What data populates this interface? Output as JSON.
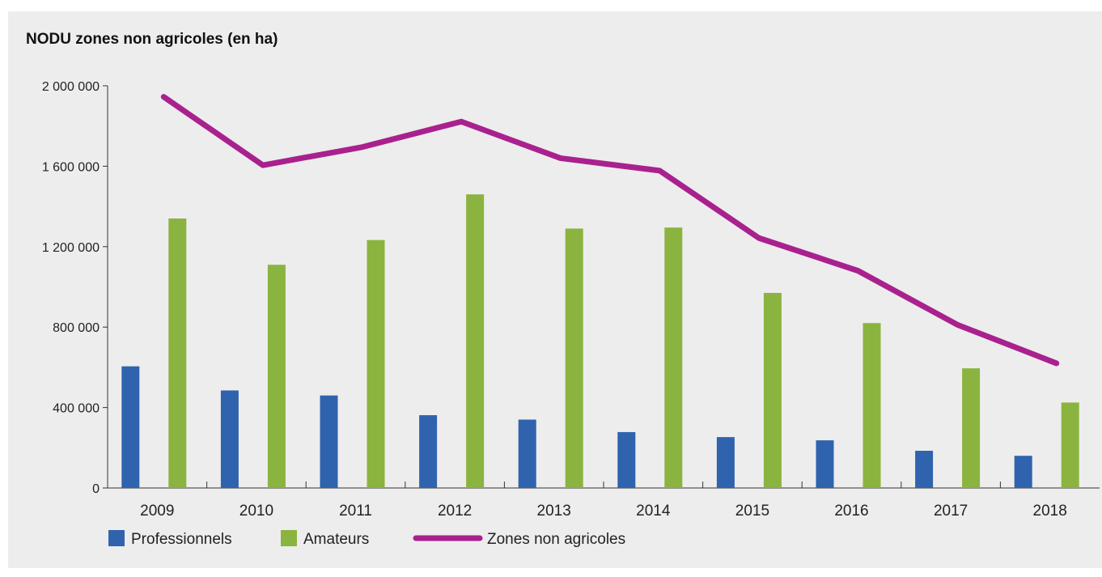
{
  "title": "NODU zones non agricoles (en ha)",
  "colors": {
    "professionnels": "#2f63ae",
    "amateurs": "#8ab43f",
    "zones": "#a9218e",
    "background": "#ededed"
  },
  "chart_data": {
    "type": "bar",
    "title": "NODU zones non agricoles (en ha)",
    "xlabel": "",
    "ylabel": "",
    "ylim": [
      0,
      2000000
    ],
    "yticks": [
      0,
      400000,
      800000,
      1200000,
      1600000,
      2000000
    ],
    "ytick_labels": [
      "0",
      "400 000",
      "800 000",
      "1 200 000",
      "1 600 000",
      "2 000 000"
    ],
    "categories": [
      "2009",
      "2010",
      "2011",
      "2012",
      "2013",
      "2014",
      "2015",
      "2016",
      "2017",
      "2018"
    ],
    "series": [
      {
        "name": "Professionnels",
        "type": "bar",
        "values": [
          605000,
          485000,
          460000,
          362000,
          340000,
          278000,
          253000,
          237000,
          185000,
          160000
        ]
      },
      {
        "name": "Amateurs",
        "type": "bar",
        "values": [
          1340000,
          1110000,
          1233000,
          1460000,
          1290000,
          1295000,
          970000,
          820000,
          595000,
          425000
        ]
      },
      {
        "name": "Zones non agricoles",
        "type": "line",
        "values": [
          1945000,
          1605000,
          1695000,
          1822000,
          1640000,
          1578000,
          1243000,
          1080000,
          812000,
          620000
        ]
      }
    ],
    "grid": false,
    "legend": "bottom-left"
  }
}
